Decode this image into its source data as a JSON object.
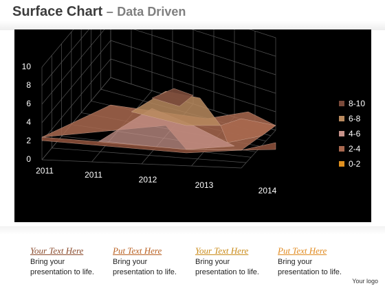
{
  "page": {
    "title": "Surface Chart",
    "dash": "–",
    "subtitle": "Data Driven",
    "logo": "Your logo"
  },
  "captions": [
    {
      "heading": "Your  Text Here",
      "line1": "Bring your",
      "line2": "presentation to life.",
      "color": "#8a4a2c"
    },
    {
      "heading": "Put Text Here",
      "line1": "Bring your",
      "line2": "presentation to life.",
      "color": "#b85f20"
    },
    {
      "heading": "Your  Text Here",
      "line1": "Bring your",
      "line2": "presentation to life.",
      "color": "#c98a17"
    },
    {
      "heading": "Put Text Here",
      "line1": "Bring your",
      "line2": "presentation to life.",
      "color": "#e08a1f"
    }
  ],
  "chart_data": {
    "type": "surface",
    "x_categories": [
      "2011",
      "2011",
      "2012",
      "2013",
      "2014"
    ],
    "y_ticks": [
      "0",
      "2",
      "4",
      "6",
      "8",
      "10"
    ],
    "ylim": [
      0,
      10
    ],
    "legend_position": "right",
    "legend": [
      {
        "label": "8-10",
        "color": "#7a4a3a"
      },
      {
        "label": "6-8",
        "color": "#b98a5e"
      },
      {
        "label": "4-6",
        "color": "#c7938a"
      },
      {
        "label": "2-4",
        "color": "#a9684f"
      },
      {
        "label": "0-2",
        "color": "#e0901e"
      }
    ],
    "surface_peak_value": 9
  }
}
